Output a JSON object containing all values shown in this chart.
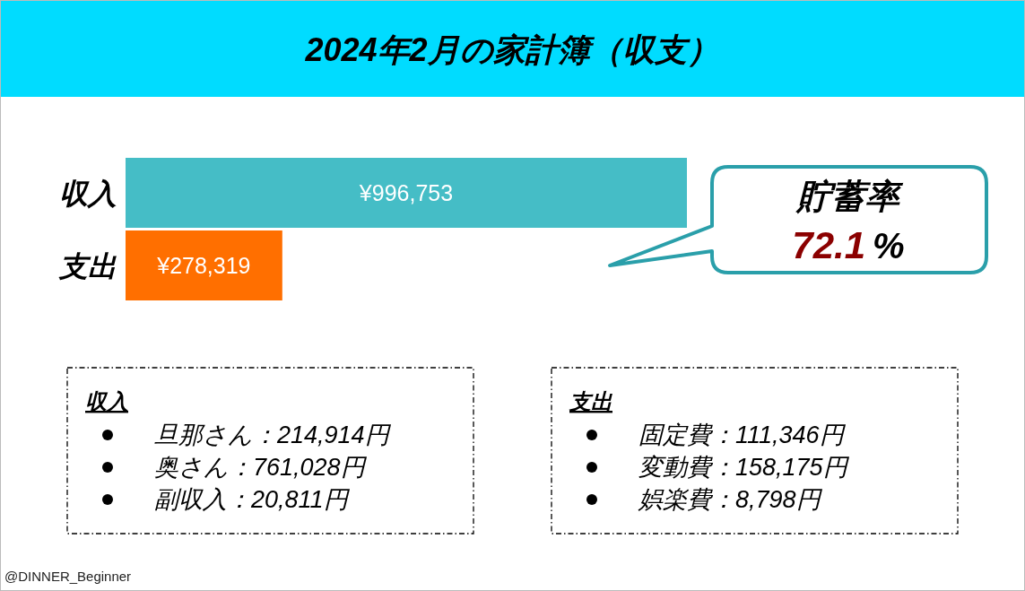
{
  "chart_data": {
    "type": "bar",
    "orientation": "horizontal",
    "title": "2024年2月の家計簿（収支）",
    "categories": [
      "収入",
      "支出"
    ],
    "values": [
      996753,
      278319
    ],
    "colors": [
      "#45bdc6",
      "#ff6f00"
    ],
    "value_labels": [
      "¥996,753",
      "¥278,319"
    ],
    "annotations": [
      "貯蓄率",
      "72.1",
      "%",
      "収入",
      "旦那さん：214,914円",
      "奥さん：761,028円",
      "副収入：20,811円",
      "支出",
      "固定費：111,346円",
      "変動費：158,175円",
      "娯楽費：8,798円",
      "@DINNER_Beginner"
    ]
  }
}
